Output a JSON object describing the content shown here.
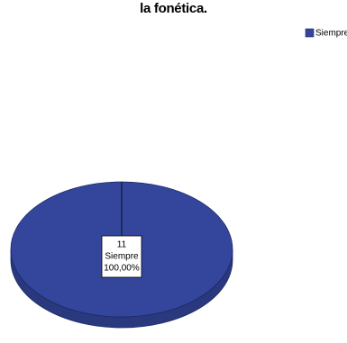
{
  "chart_data": {
    "type": "pie",
    "title": "canciones infantiles a mi hijo(a) porque esto le fortalece la fonética.",
    "categories": [
      "Siempre"
    ],
    "series": [
      {
        "name": "Siempre",
        "color": "#34469c",
        "values": [
          11
        ]
      }
    ],
    "percentages": [
      100
    ],
    "percentage_labels": [
      "100,00%"
    ],
    "legend": "top-right"
  }
}
